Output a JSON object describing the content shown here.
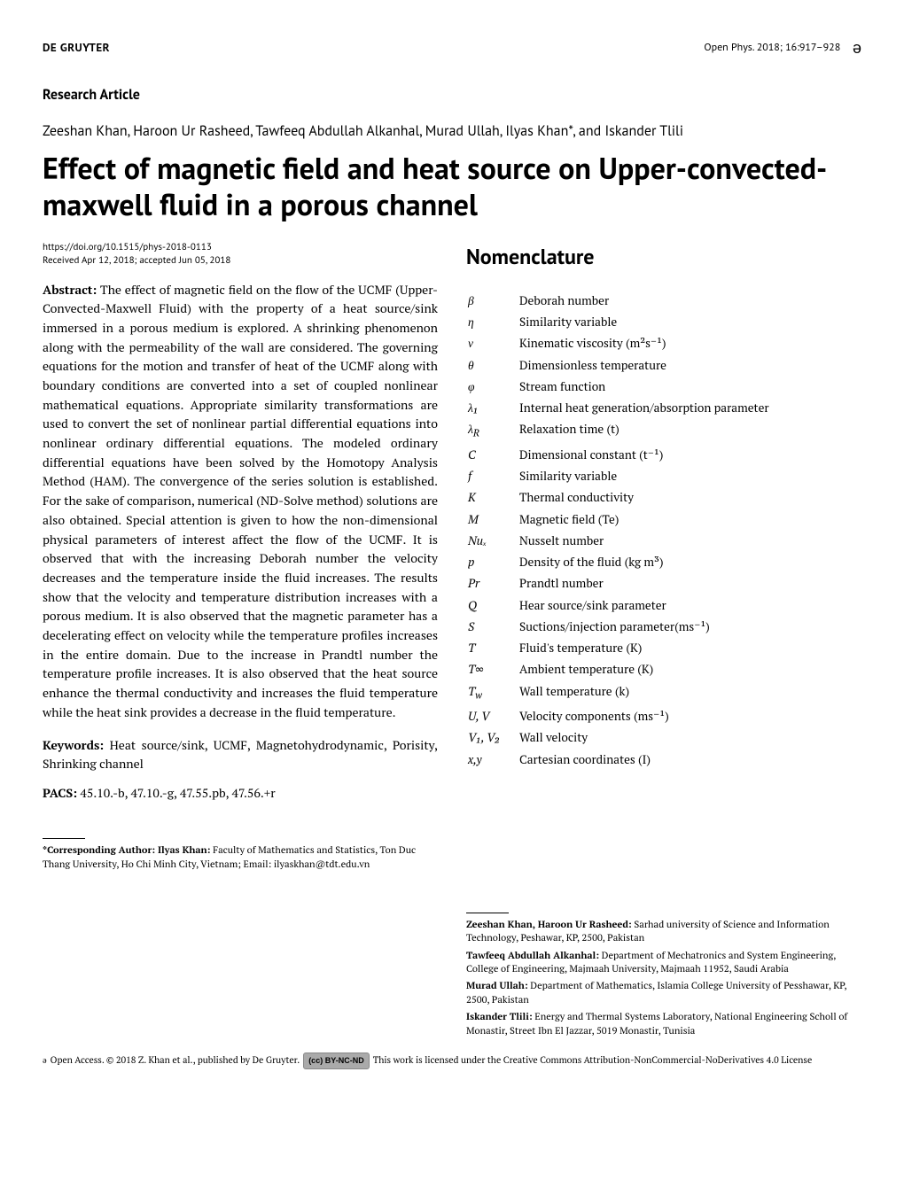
{
  "header": {
    "publisher": "DE GRUYTER",
    "journal": "Open Phys. 2018; 16:917–928",
    "oa_icon": "ə"
  },
  "article_type": "Research Article",
  "authors": "Zeeshan Khan, Haroon Ur Rasheed, Tawfeeq Abdullah Alkanhal, Murad Ullah, Ilyas Khan*, and Iskander Tlili",
  "title": "Effect of magnetic field and heat source on Upper-convected-maxwell fluid in a porous channel",
  "doi": "https://doi.org/10.1515/phys-2018-0113",
  "received": "Received Apr 12, 2018; accepted Jun 05, 2018",
  "abstract_label": "Abstract:",
  "abstract_text": " The effect of magnetic field on the flow of the UCMF (Upper-Convected-Maxwell Fluid) with the property of a heat source/sink immersed in a porous medium is explored. A shrinking phenomenon along with the permeability of the wall are considered. The governing equations for the motion and transfer of heat of the UCMF along with boundary conditions are converted into a set of coupled nonlinear mathematical equations. Appropriate similarity transformations are used to convert the set of nonlinear partial differential equations into nonlinear ordinary differential equations. The modeled ordinary differential equations have been solved by the Homotopy Analysis Method (HAM). The convergence of the series solution is established. For the sake of comparison, numerical (ND-Solve method) solutions are also obtained. Special attention is given to how the non-dimensional physical parameters of interest affect the flow of the UCMF. It is observed that with the increasing Deborah number the velocity decreases and the temperature inside the fluid increases. The results show that the velocity and temperature distribution increases with a porous medium. It is also observed that the magnetic parameter has a decelerating effect on velocity while the temperature profiles increases in the entire domain. Due to the increase in Prandtl number the temperature profile increases. It is also observed that the heat source enhance the thermal conductivity and increases the fluid temperature while the heat sink provides a decrease in the fluid temperature.",
  "keywords_label": "Keywords:",
  "keywords_text": " Heat source/sink, UCMF, Magnetohydrodynamic, Porisity, Shrinking channel",
  "pacs_label": "PACS:",
  "pacs_text": " 45.10.-b, 47.10.-g, 47.55.pb, 47.56.+r",
  "nomenclature_heading": "Nomenclature",
  "nomenclature": [
    {
      "sym": "β",
      "desc": "Deborah number"
    },
    {
      "sym": "η",
      "desc": "Similarity variable"
    },
    {
      "sym": "ν",
      "desc": "Kinematic viscosity (m²s⁻¹)"
    },
    {
      "sym": "θ",
      "desc": "Dimensionless temperature"
    },
    {
      "sym": "φ",
      "desc": "Stream function"
    },
    {
      "sym": "λ₁",
      "desc": "Internal heat generation/absorption parameter"
    },
    {
      "sym": "λ_R",
      "desc": "Relaxation time (t)"
    },
    {
      "sym": "C",
      "desc": "Dimensional constant (t⁻¹)",
      "roman": true
    },
    {
      "sym": "f",
      "desc": "Similarity variable",
      "roman": true
    },
    {
      "sym": "K",
      "desc": "Thermal conductivity",
      "roman": true
    },
    {
      "sym": "M",
      "desc": "Magnetic field (Te)",
      "roman": true
    },
    {
      "sym": "Nuₓ",
      "desc": "Nusselt number",
      "roman": true
    },
    {
      "sym": "p",
      "desc": "Density of the fluid (kg m³)",
      "roman": true
    },
    {
      "sym": "Pr",
      "desc": "Prandtl number",
      "roman": true
    },
    {
      "sym": "Q",
      "desc": "Hear source/sink parameter",
      "roman": true
    },
    {
      "sym": "S",
      "desc": "Suctions/injection parameter(ms⁻¹)",
      "roman": true
    },
    {
      "sym": "T",
      "desc": "Fluid's temperature (K)",
      "roman": true
    },
    {
      "sym": "T∞",
      "desc": "Ambient temperature (K)",
      "roman": true
    },
    {
      "sym": "T_w",
      "desc": "Wall temperature (k)",
      "roman": true
    },
    {
      "sym": "U, V",
      "desc": "Velocity components (ms⁻¹)",
      "roman": true
    },
    {
      "sym": "V₁, V₂",
      "desc": "Wall velocity",
      "roman": true
    },
    {
      "sym": "x,y",
      "desc": "Cartesian coordinates (I)",
      "roman": true
    }
  ],
  "footnotes_left": [
    {
      "bold": "*Corresponding Author: Ilyas Khan:",
      "text": " Faculty of Mathematics and Statistics, Ton Duc Thang University, Ho Chi Minh City, Vietnam; Email: ilyaskhan@tdt.edu.vn"
    }
  ],
  "footnotes_right": [
    {
      "bold": "Zeeshan Khan, Haroon Ur Rasheed:",
      "text": " Sarhad university of Science and Information Technology, Peshawar, KP, 2500, Pakistan"
    },
    {
      "bold": "Tawfeeq Abdullah Alkanhal:",
      "text": " Department of Mechatronics and System Engineering, College of Engineering, Majmaah University, Majmaah 11952, Saudi Arabia"
    },
    {
      "bold": "Murad Ullah:",
      "text": " Department of Mathematics, Islamia College University of Pesshawar, KP, 2500, Pakistan"
    },
    {
      "bold": "Iskander Tlili:",
      "text": " Energy and Thermal Systems Laboratory, National Engineering Scholl of Monastir, Street Ibn El Jazzar, 5019 Monastir, Tunisia"
    }
  ],
  "license": {
    "pre": "Open Access. © 2018 Z. Khan et al., published by De Gruyter.",
    "badge": "(cc) BY-NC-ND",
    "post": " This work is licensed under the Creative Commons Attribution-NonCommercial-NoDerivatives 4.0 License"
  }
}
